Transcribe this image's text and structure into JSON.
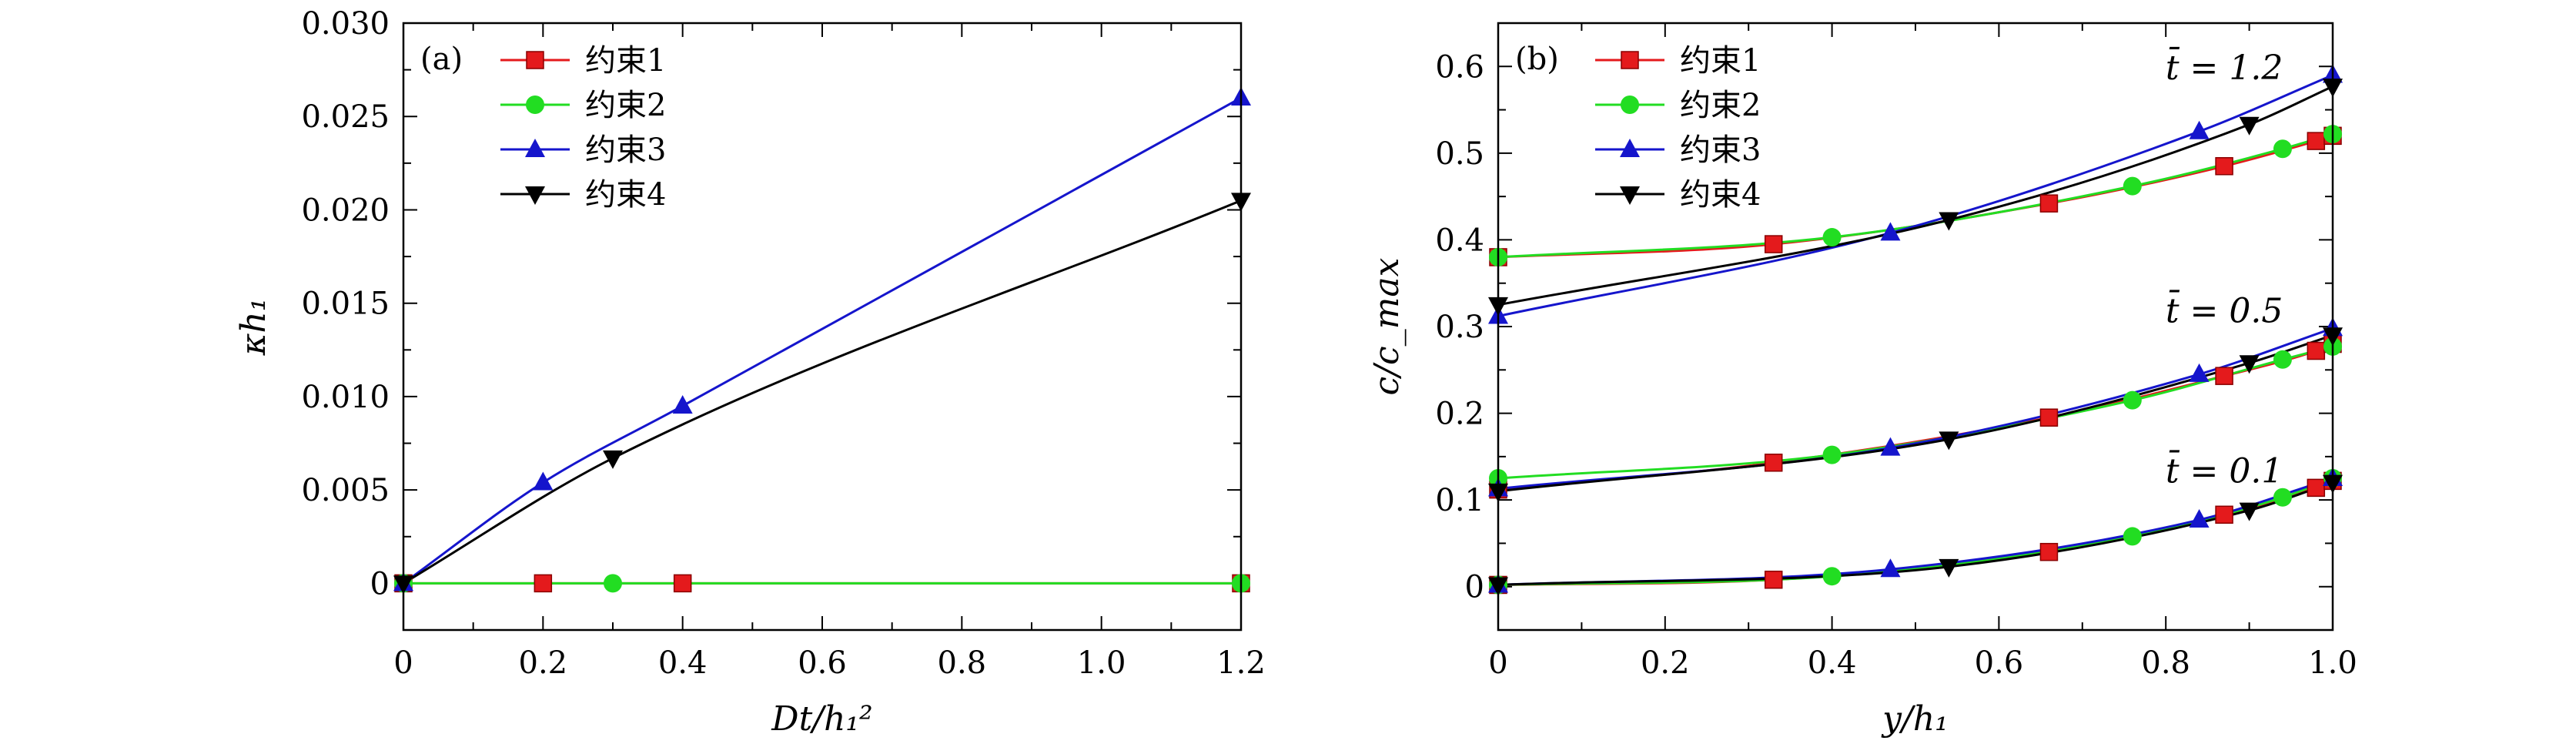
{
  "charts": [
    {
      "id": "a",
      "panel_label": "(a)",
      "xlabel": "Dt/h₁²",
      "ylabel": "κh₁",
      "xlim": [
        0,
        1.2
      ],
      "ylim": [
        -0.0025,
        0.03
      ],
      "xticks": [
        0,
        0.2,
        0.4,
        0.6,
        0.8,
        1.0,
        1.2
      ],
      "xtick_labels": [
        "0",
        "0.2",
        "0.4",
        "0.6",
        "0.8",
        "1.0",
        "1.2"
      ],
      "yticks": [
        0,
        0.005,
        0.01,
        0.015,
        0.02,
        0.025,
        0.03
      ],
      "ytick_labels": [
        "0",
        "0.005",
        "0.010",
        "0.015",
        "0.020",
        "0.025",
        "0.030"
      ],
      "legend": [
        "约束1",
        "约束2",
        "约束3",
        "约束4"
      ],
      "curve_annotations": []
    },
    {
      "id": "b",
      "panel_label": "(b)",
      "xlabel": "y/h₁",
      "ylabel": "c/c_max",
      "xlim": [
        0,
        1.0
      ],
      "ylim": [
        -0.05,
        0.65
      ],
      "xticks": [
        0,
        0.2,
        0.4,
        0.6,
        0.8,
        1.0
      ],
      "xtick_labels": [
        "0",
        "0.2",
        "0.4",
        "0.6",
        "0.8",
        "1.0"
      ],
      "yticks": [
        0,
        0.1,
        0.2,
        0.3,
        0.4,
        0.5,
        0.6
      ],
      "ytick_labels": [
        "0",
        "0.1",
        "0.2",
        "0.3",
        "0.4",
        "0.5",
        "0.6"
      ],
      "legend": [
        "约束1",
        "约束2",
        "约束3",
        "约束4"
      ],
      "curve_annotations": [
        {
          "text": "t̄ = 1.2",
          "x": 0.87,
          "y": 0.585
        },
        {
          "text": "t̄ = 0.5",
          "x": 0.87,
          "y": 0.305
        },
        {
          "text": "t̄ = 0.1",
          "x": 0.87,
          "y": 0.12
        }
      ]
    }
  ],
  "chart_data": [
    {
      "type": "line",
      "panel": "(a)",
      "xlabel": "Dt/h₁²",
      "ylabel": "κh₁",
      "xlim": [
        0,
        1.2
      ],
      "ylim": [
        -0.0025,
        0.03
      ],
      "series": [
        {
          "name": "约束1",
          "color": "#e41a1c",
          "marker": "square",
          "x": [
            0,
            0.2,
            0.4,
            1.2
          ],
          "y": [
            0,
            0,
            0,
            0
          ]
        },
        {
          "name": "约束2",
          "color": "#22dd22",
          "marker": "circle",
          "x": [
            0,
            0.3,
            1.2
          ],
          "y": [
            0,
            0,
            0
          ]
        },
        {
          "name": "约束3",
          "color": "#1515cc",
          "marker": "triangle-up",
          "x": [
            0,
            0.2,
            0.4,
            1.2
          ],
          "y": [
            0,
            0.0054,
            0.0095,
            0.026
          ]
        },
        {
          "name": "约束4",
          "color": "#000000",
          "marker": "triangle-down",
          "x": [
            0,
            0.3,
            1.2
          ],
          "y": [
            0,
            0.0067,
            0.0205
          ]
        }
      ]
    },
    {
      "type": "line",
      "panel": "(b)",
      "xlabel": "y/h₁",
      "ylabel": "c/c_max",
      "xlim": [
        0,
        1.0
      ],
      "ylim": [
        -0.05,
        0.65
      ],
      "groups": [
        {
          "label": "t̄ = 1.2",
          "series": [
            {
              "name": "约束1",
              "color": "#e41a1c",
              "marker": "square",
              "x": [
                0,
                0.33,
                0.66,
                0.87,
                0.98,
                1.0
              ],
              "y": [
                0.38,
                0.395,
                0.442,
                0.485,
                0.514,
                0.52
              ]
            },
            {
              "name": "约束2",
              "color": "#22dd22",
              "marker": "circle",
              "x": [
                0,
                0.4,
                0.76,
                0.94,
                1.0
              ],
              "y": [
                0.38,
                0.403,
                0.462,
                0.505,
                0.522
              ]
            },
            {
              "name": "约束3",
              "color": "#1515cc",
              "marker": "triangle-up",
              "x": [
                0,
                0.47,
                0.84,
                1.0
              ],
              "y": [
                0.312,
                0.408,
                0.525,
                0.59
              ]
            },
            {
              "name": "约束4",
              "color": "#000000",
              "marker": "triangle-down",
              "x": [
                0,
                0.54,
                0.9,
                1.0
              ],
              "y": [
                0.325,
                0.423,
                0.533,
                0.577
              ]
            }
          ]
        },
        {
          "label": "t̄ = 0.5",
          "series": [
            {
              "name": "约束1",
              "color": "#e41a1c",
              "marker": "square",
              "x": [
                0,
                0.33,
                0.66,
                0.87,
                0.98,
                1.0
              ],
              "y": [
                0.112,
                0.143,
                0.195,
                0.243,
                0.272,
                0.28
              ]
            },
            {
              "name": "约束2",
              "color": "#22dd22",
              "marker": "circle",
              "x": [
                0,
                0.4,
                0.76,
                0.94,
                1.0
              ],
              "y": [
                0.125,
                0.152,
                0.215,
                0.262,
                0.277
              ]
            },
            {
              "name": "约束3",
              "color": "#1515cc",
              "marker": "triangle-up",
              "x": [
                0,
                0.47,
                0.84,
                1.0
              ],
              "y": [
                0.113,
                0.16,
                0.245,
                0.298
              ]
            },
            {
              "name": "约束4",
              "color": "#000000",
              "marker": "triangle-down",
              "x": [
                0,
                0.54,
                0.9,
                1.0
              ],
              "y": [
                0.11,
                0.17,
                0.258,
                0.29
              ]
            }
          ]
        },
        {
          "label": "t̄ = 0.1",
          "series": [
            {
              "name": "约束1",
              "color": "#e41a1c",
              "marker": "square",
              "x": [
                0,
                0.33,
                0.66,
                0.87,
                0.98,
                1.0
              ],
              "y": [
                0.002,
                0.008,
                0.04,
                0.083,
                0.114,
                0.122
              ]
            },
            {
              "name": "约束2",
              "color": "#22dd22",
              "marker": "circle",
              "x": [
                0,
                0.4,
                0.76,
                0.94,
                1.0
              ],
              "y": [
                0.002,
                0.012,
                0.058,
                0.103,
                0.125
              ]
            },
            {
              "name": "约束3",
              "color": "#1515cc",
              "marker": "triangle-up",
              "x": [
                0,
                0.47,
                0.84,
                1.0
              ],
              "y": [
                0.002,
                0.02,
                0.077,
                0.125
              ]
            },
            {
              "name": "约束4",
              "color": "#000000",
              "marker": "triangle-down",
              "x": [
                0,
                0.54,
                0.9,
                1.0
              ],
              "y": [
                0.002,
                0.023,
                0.088,
                0.12
              ]
            }
          ]
        }
      ]
    }
  ]
}
